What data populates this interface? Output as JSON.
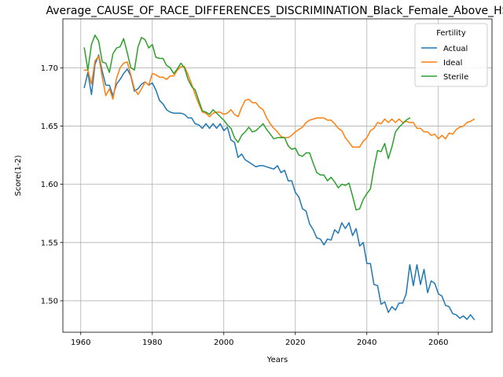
{
  "chart_data": {
    "type": "line",
    "title": "Average_CAUSE_OF_RACE_DIFFERENCES_DISCRIMINATION_Black_Female_Above_HS",
    "xlabel": "Years",
    "ylabel": "Score(1-2)",
    "xlim": [
      1955,
      2075
    ],
    "ylim": [
      1.473,
      1.742
    ],
    "xticks": [
      1960,
      1980,
      2000,
      2020,
      2040,
      2060
    ],
    "yticks": [
      1.5,
      1.55,
      1.6,
      1.65,
      1.7
    ],
    "ytick_labels": [
      "1.50",
      "1.55",
      "1.60",
      "1.65",
      "1.70"
    ],
    "grid": true,
    "legend": {
      "title": "Fertility",
      "position": "top-right"
    },
    "series": [
      {
        "name": "Actual",
        "color": "#1f77b4",
        "x": [
          1961,
          1962,
          1963,
          1964,
          1965,
          1966,
          1967,
          1968,
          1969,
          1970,
          1971,
          1972,
          1973,
          1974,
          1975,
          1976,
          1977,
          1978,
          1979,
          1980,
          1981,
          1982,
          1983,
          1984,
          1985,
          1986,
          1987,
          1988,
          1989,
          1990,
          1991,
          1992,
          1993,
          1994,
          1995,
          1996,
          1997,
          1998,
          1999,
          2000,
          2001,
          2002,
          2003,
          2004,
          2005,
          2006,
          2007,
          2008,
          2009,
          2010,
          2011,
          2012,
          2013,
          2014,
          2015,
          2016,
          2017,
          2018,
          2019,
          2020,
          2021,
          2022,
          2023,
          2024,
          2025,
          2026,
          2027,
          2028,
          2029,
          2030,
          2031,
          2032,
          2033,
          2034,
          2035,
          2036,
          2037,
          2038,
          2039,
          2040,
          2041,
          2042,
          2043,
          2044,
          2045,
          2046,
          2047,
          2048,
          2049,
          2050,
          2051,
          2052,
          2053,
          2054,
          2055,
          2056,
          2057,
          2058,
          2059,
          2060,
          2061,
          2062,
          2063,
          2064,
          2065,
          2066,
          2067,
          2068,
          2069,
          2070
        ],
        "values": [
          1.683,
          1.696,
          1.677,
          1.703,
          1.711,
          1.697,
          1.685,
          1.685,
          1.676,
          1.686,
          1.69,
          1.695,
          1.699,
          1.693,
          1.68,
          1.682,
          1.686,
          1.688,
          1.685,
          1.687,
          1.681,
          1.672,
          1.669,
          1.664,
          1.662,
          1.661,
          1.661,
          1.661,
          1.66,
          1.657,
          1.657,
          1.652,
          1.651,
          1.648,
          1.652,
          1.648,
          1.652,
          1.648,
          1.652,
          1.646,
          1.649,
          1.638,
          1.636,
          1.623,
          1.626,
          1.621,
          1.619,
          1.617,
          1.615,
          1.616,
          1.616,
          1.615,
          1.614,
          1.613,
          1.616,
          1.61,
          1.612,
          1.603,
          1.603,
          1.593,
          1.589,
          1.579,
          1.577,
          1.566,
          1.561,
          1.554,
          1.553,
          1.548,
          1.553,
          1.552,
          1.561,
          1.558,
          1.567,
          1.562,
          1.567,
          1.556,
          1.562,
          1.547,
          1.55,
          1.532,
          1.532,
          1.514,
          1.513,
          1.497,
          1.499,
          1.49,
          1.495,
          1.492,
          1.498,
          1.498,
          1.506,
          1.531,
          1.513,
          1.531,
          1.514,
          1.527,
          1.507,
          1.517,
          1.515,
          1.506,
          1.504,
          1.496,
          1.495,
          1.489,
          1.488,
          1.485,
          1.487,
          1.484,
          1.488,
          1.484
        ]
      },
      {
        "name": "Ideal",
        "color": "#ff7f0e",
        "x": [
          1961,
          1962,
          1963,
          1964,
          1965,
          1966,
          1967,
          1968,
          1969,
          1970,
          1971,
          1972,
          1973,
          1974,
          1975,
          1976,
          1977,
          1978,
          1979,
          1980,
          1981,
          1982,
          1983,
          1984,
          1985,
          1986,
          1987,
          1988,
          1989,
          1990,
          1991,
          1992,
          1993,
          1994,
          1995,
          1996,
          1997,
          1998,
          1999,
          2000,
          2001,
          2002,
          2003,
          2004,
          2005,
          2006,
          2007,
          2008,
          2009,
          2010,
          2011,
          2012,
          2013,
          2014,
          2015,
          2016,
          2017,
          2018,
          2019,
          2020,
          2021,
          2022,
          2023,
          2024,
          2025,
          2026,
          2027,
          2028,
          2029,
          2030,
          2031,
          2032,
          2033,
          2034,
          2035,
          2036,
          2037,
          2038,
          2039,
          2040,
          2041,
          2042,
          2043,
          2044,
          2045,
          2046,
          2047,
          2048,
          2049,
          2050,
          2051,
          2052,
          2053,
          2054,
          2055,
          2056,
          2057,
          2058,
          2059,
          2060,
          2061,
          2062,
          2063,
          2064,
          2065,
          2066,
          2067,
          2068,
          2069,
          2070
        ],
        "values": [
          1.698,
          1.698,
          1.686,
          1.706,
          1.71,
          1.692,
          1.676,
          1.682,
          1.673,
          1.691,
          1.7,
          1.704,
          1.705,
          1.694,
          1.682,
          1.677,
          1.682,
          1.688,
          1.685,
          1.695,
          1.694,
          1.692,
          1.692,
          1.69,
          1.693,
          1.693,
          1.698,
          1.701,
          1.701,
          1.694,
          1.686,
          1.677,
          1.669,
          1.662,
          1.661,
          1.658,
          1.661,
          1.662,
          1.662,
          1.66,
          1.661,
          1.664,
          1.66,
          1.658,
          1.666,
          1.672,
          1.673,
          1.67,
          1.67,
          1.666,
          1.664,
          1.657,
          1.652,
          1.648,
          1.645,
          1.641,
          1.64,
          1.64,
          1.642,
          1.645,
          1.647,
          1.649,
          1.653,
          1.655,
          1.656,
          1.657,
          1.657,
          1.657,
          1.655,
          1.655,
          1.652,
          1.648,
          1.646,
          1.64,
          1.636,
          1.632,
          1.632,
          1.632,
          1.637,
          1.64,
          1.646,
          1.648,
          1.653,
          1.652,
          1.656,
          1.653,
          1.656,
          1.653,
          1.656,
          1.653,
          1.654,
          1.653,
          1.653,
          1.648,
          1.648,
          1.645,
          1.645,
          1.642,
          1.643,
          1.639,
          1.642,
          1.639,
          1.644,
          1.643,
          1.647,
          1.649,
          1.65,
          1.653,
          1.654,
          1.656
        ]
      },
      {
        "name": "Sterile",
        "color": "#2ca02c",
        "x": [
          1961,
          1962,
          1963,
          1964,
          1965,
          1966,
          1967,
          1968,
          1969,
          1970,
          1971,
          1972,
          1973,
          1974,
          1975,
          1976,
          1977,
          1978,
          1979,
          1980,
          1981,
          1982,
          1983,
          1984,
          1985,
          1986,
          1987,
          1988,
          1989,
          1990,
          1991,
          1992,
          1993,
          1994,
          1995,
          1996,
          1997,
          1998,
          1999,
          2000,
          2001,
          2002,
          2003,
          2004,
          2005,
          2006,
          2007,
          2008,
          2009,
          2010,
          2011,
          2012,
          2013,
          2014,
          2015,
          2016,
          2017,
          2018,
          2019,
          2020,
          2021,
          2022,
          2023,
          2024,
          2025,
          2026,
          2027,
          2028,
          2029,
          2030,
          2031,
          2032,
          2033,
          2034,
          2035,
          2036,
          2037,
          2038,
          2039,
          2040,
          2041,
          2042,
          2043,
          2044,
          2045,
          2046,
          2047,
          2048,
          2049,
          2050,
          2051,
          2052
        ],
        "values": [
          1.717,
          1.698,
          1.72,
          1.728,
          1.723,
          1.705,
          1.704,
          1.696,
          1.712,
          1.717,
          1.718,
          1.725,
          1.713,
          1.7,
          1.698,
          1.718,
          1.726,
          1.724,
          1.717,
          1.72,
          1.709,
          1.708,
          1.708,
          1.702,
          1.7,
          1.695,
          1.699,
          1.704,
          1.7,
          1.69,
          1.684,
          1.681,
          1.672,
          1.663,
          1.662,
          1.66,
          1.664,
          1.661,
          1.658,
          1.655,
          1.651,
          1.648,
          1.64,
          1.636,
          1.642,
          1.645,
          1.649,
          1.645,
          1.646,
          1.649,
          1.652,
          1.647,
          1.643,
          1.639,
          1.64,
          1.64,
          1.64,
          1.633,
          1.63,
          1.631,
          1.625,
          1.624,
          1.627,
          1.627,
          1.618,
          1.61,
          1.608,
          1.608,
          1.603,
          1.606,
          1.602,
          1.597,
          1.6,
          1.599,
          1.601,
          1.59,
          1.578,
          1.579,
          1.587,
          1.592,
          1.596,
          1.614,
          1.629,
          1.628,
          1.635,
          1.622,
          1.632,
          1.645,
          1.649,
          1.652,
          1.655,
          1.657
        ]
      }
    ]
  }
}
